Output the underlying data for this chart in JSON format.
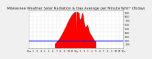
{
  "title": "Milwaukee Weather Solar Radiation & Day Average per Minute W/m² (Today)",
  "title_fontsize": 3.8,
  "bg_color": "#f0f0f0",
  "plot_bg_color": "#ffffff",
  "grid_color": "#bbbbbb",
  "bar_color": "#ff0000",
  "avg_line_color": "#0000ff",
  "avg_value": 180,
  "ymax": 950,
  "ymin": 0,
  "ytick_values": [
    100,
    200,
    300,
    400,
    500,
    600,
    700,
    800,
    900
  ],
  "num_points": 1440,
  "spine_color": "#aaaaaa",
  "tick_fontsize": 2.8,
  "x_tick_positions": [
    0,
    60,
    120,
    180,
    240,
    300,
    360,
    420,
    480,
    540,
    600,
    660,
    720,
    780,
    840,
    900,
    960,
    1020,
    1080,
    1140,
    1200,
    1260,
    1320,
    1380,
    1439
  ],
  "x_tick_labels": [
    "12a",
    "1",
    "2",
    "3",
    "4",
    "5",
    "6",
    "7",
    "8",
    "9",
    "10",
    "11",
    "12p",
    "1",
    "2",
    "3",
    "4",
    "5",
    "6",
    "7",
    "8",
    "9",
    "10",
    "11",
    "12a"
  ],
  "solar_start": 390,
  "solar_end": 1020,
  "peak_minute": 720,
  "peak_value": 920,
  "spike_minute": 718,
  "spike_value": 920,
  "secondary_peak1": 760,
  "secondary_peak1_val": 680,
  "secondary_peak2": 800,
  "secondary_peak2_val": 560,
  "secondary_peak3": 820,
  "secondary_peak3_val": 480
}
